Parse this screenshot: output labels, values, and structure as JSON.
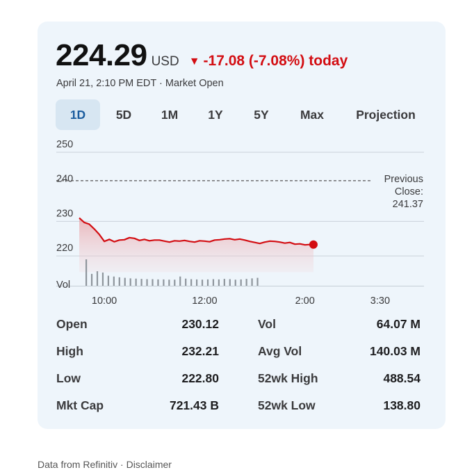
{
  "quote": {
    "price": "224.29",
    "currency": "USD",
    "change_arrow": "▼",
    "change": "-17.08 (-7.08%) today",
    "timestamp": "April 21, 2:10 PM EDT · Market Open"
  },
  "tabs": [
    {
      "label": "1D",
      "active": true
    },
    {
      "label": "5D",
      "active": false
    },
    {
      "label": "1M",
      "active": false
    },
    {
      "label": "1Y",
      "active": false
    },
    {
      "label": "5Y",
      "active": false
    },
    {
      "label": "Max",
      "active": false
    },
    {
      "label": "Projection",
      "active": false
    }
  ],
  "chart_data": {
    "type": "line",
    "y_ticks": [
      "250",
      "240",
      "230",
      "220"
    ],
    "ylim": [
      215,
      252
    ],
    "x_ticks": [
      "10:00",
      "12:00",
      "2:00",
      "3:30"
    ],
    "x_tick_values": [
      10.0,
      12.0,
      14.0,
      15.5
    ],
    "xlim": [
      9.5,
      16.0
    ],
    "previous_close": {
      "label_line1": "Previous",
      "label_line2": "Close:",
      "value": 241.37
    },
    "volume_label": "Vol",
    "line_color": "#d30d12",
    "series": [
      {
        "x": [
          9.5,
          9.6,
          9.7,
          9.8,
          9.9,
          10.0,
          10.1,
          10.2,
          10.3,
          10.4,
          10.5,
          10.6,
          10.7,
          10.8,
          10.9,
          11.0,
          11.1,
          11.2,
          11.3,
          11.4,
          11.5,
          11.6,
          11.7,
          11.8,
          11.9,
          12.0,
          12.1,
          12.2,
          12.3,
          12.4,
          12.5,
          12.6,
          12.7,
          12.8,
          12.9,
          13.0,
          13.1,
          13.2,
          13.3,
          13.4,
          13.5,
          13.6,
          13.7,
          13.8,
          13.9,
          14.0,
          14.1,
          14.17
        ],
        "values": [
          231.0,
          229.7,
          229.2,
          227.8,
          226.2,
          224.2,
          224.8,
          224.1,
          224.6,
          224.7,
          225.3,
          225.1,
          224.5,
          224.8,
          224.4,
          224.6,
          224.6,
          224.3,
          224.0,
          224.4,
          224.3,
          224.5,
          224.2,
          224.0,
          224.4,
          224.3,
          224.1,
          224.6,
          224.7,
          224.9,
          225.0,
          224.7,
          224.9,
          224.6,
          224.2,
          223.9,
          223.6,
          224.0,
          224.3,
          224.2,
          224.0,
          223.7,
          223.9,
          223.4,
          223.5,
          223.2,
          223.3,
          223.3
        ]
      }
    ],
    "volume_relative": [
      1.0,
      0.45,
      0.55,
      0.5,
      0.38,
      0.35,
      0.32,
      0.3,
      0.28,
      0.27,
      0.26,
      0.25,
      0.25,
      0.24,
      0.24,
      0.23,
      0.23,
      0.35,
      0.27,
      0.25,
      0.24,
      0.23,
      0.24,
      0.25,
      0.24,
      0.26,
      0.25,
      0.23,
      0.24,
      0.26,
      0.28,
      0.3
    ]
  },
  "stats": [
    {
      "label": "Open",
      "value": "230.12",
      "label2": "Vol",
      "value2": "64.07 M"
    },
    {
      "label": "High",
      "value": "232.21",
      "label2": "Avg Vol",
      "value2": "140.03 M"
    },
    {
      "label": "Low",
      "value": "222.80",
      "label2": "52wk High",
      "value2": "488.54"
    },
    {
      "label": "Mkt Cap",
      "value": "721.43 B",
      "label2": "52wk Low",
      "value2": "138.80"
    }
  ],
  "footer": "Data from Refinitiv · Disclaimer",
  "colors": {
    "accent": "#1a5c9e",
    "negative": "#d30d12",
    "card_bg": "#eef5fb",
    "tab_active_bg": "#d7e6f2"
  }
}
